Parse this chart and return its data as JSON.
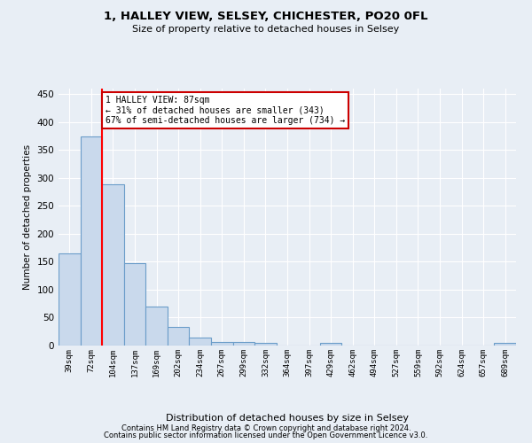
{
  "title": "1, HALLEY VIEW, SELSEY, CHICHESTER, PO20 0FL",
  "subtitle": "Size of property relative to detached houses in Selsey",
  "xlabel": "Distribution of detached houses by size in Selsey",
  "ylabel": "Number of detached properties",
  "categories": [
    "39sqm",
    "72sqm",
    "104sqm",
    "137sqm",
    "169sqm",
    "202sqm",
    "234sqm",
    "267sqm",
    "299sqm",
    "332sqm",
    "364sqm",
    "397sqm",
    "429sqm",
    "462sqm",
    "494sqm",
    "527sqm",
    "559sqm",
    "592sqm",
    "624sqm",
    "657sqm",
    "689sqm"
  ],
  "values": [
    165,
    375,
    289,
    148,
    70,
    33,
    14,
    7,
    6,
    5,
    0,
    0,
    5,
    0,
    0,
    0,
    0,
    0,
    0,
    0,
    5
  ],
  "bar_color": "#c9d9ec",
  "bar_edge_color": "#6b9dc9",
  "red_line_x": 1.5,
  "annotation_text": "1 HALLEY VIEW: 87sqm\n← 31% of detached houses are smaller (343)\n67% of semi-detached houses are larger (734) →",
  "annotation_box_color": "#ffffff",
  "annotation_box_edge": "#cc0000",
  "background_color": "#e8eef5",
  "plot_bg_color": "#e8eef5",
  "grid_color": "#ffffff",
  "ylim": [
    0,
    460
  ],
  "yticks": [
    0,
    50,
    100,
    150,
    200,
    250,
    300,
    350,
    400,
    450
  ],
  "footer1": "Contains HM Land Registry data © Crown copyright and database right 2024.",
  "footer2": "Contains public sector information licensed under the Open Government Licence v3.0."
}
